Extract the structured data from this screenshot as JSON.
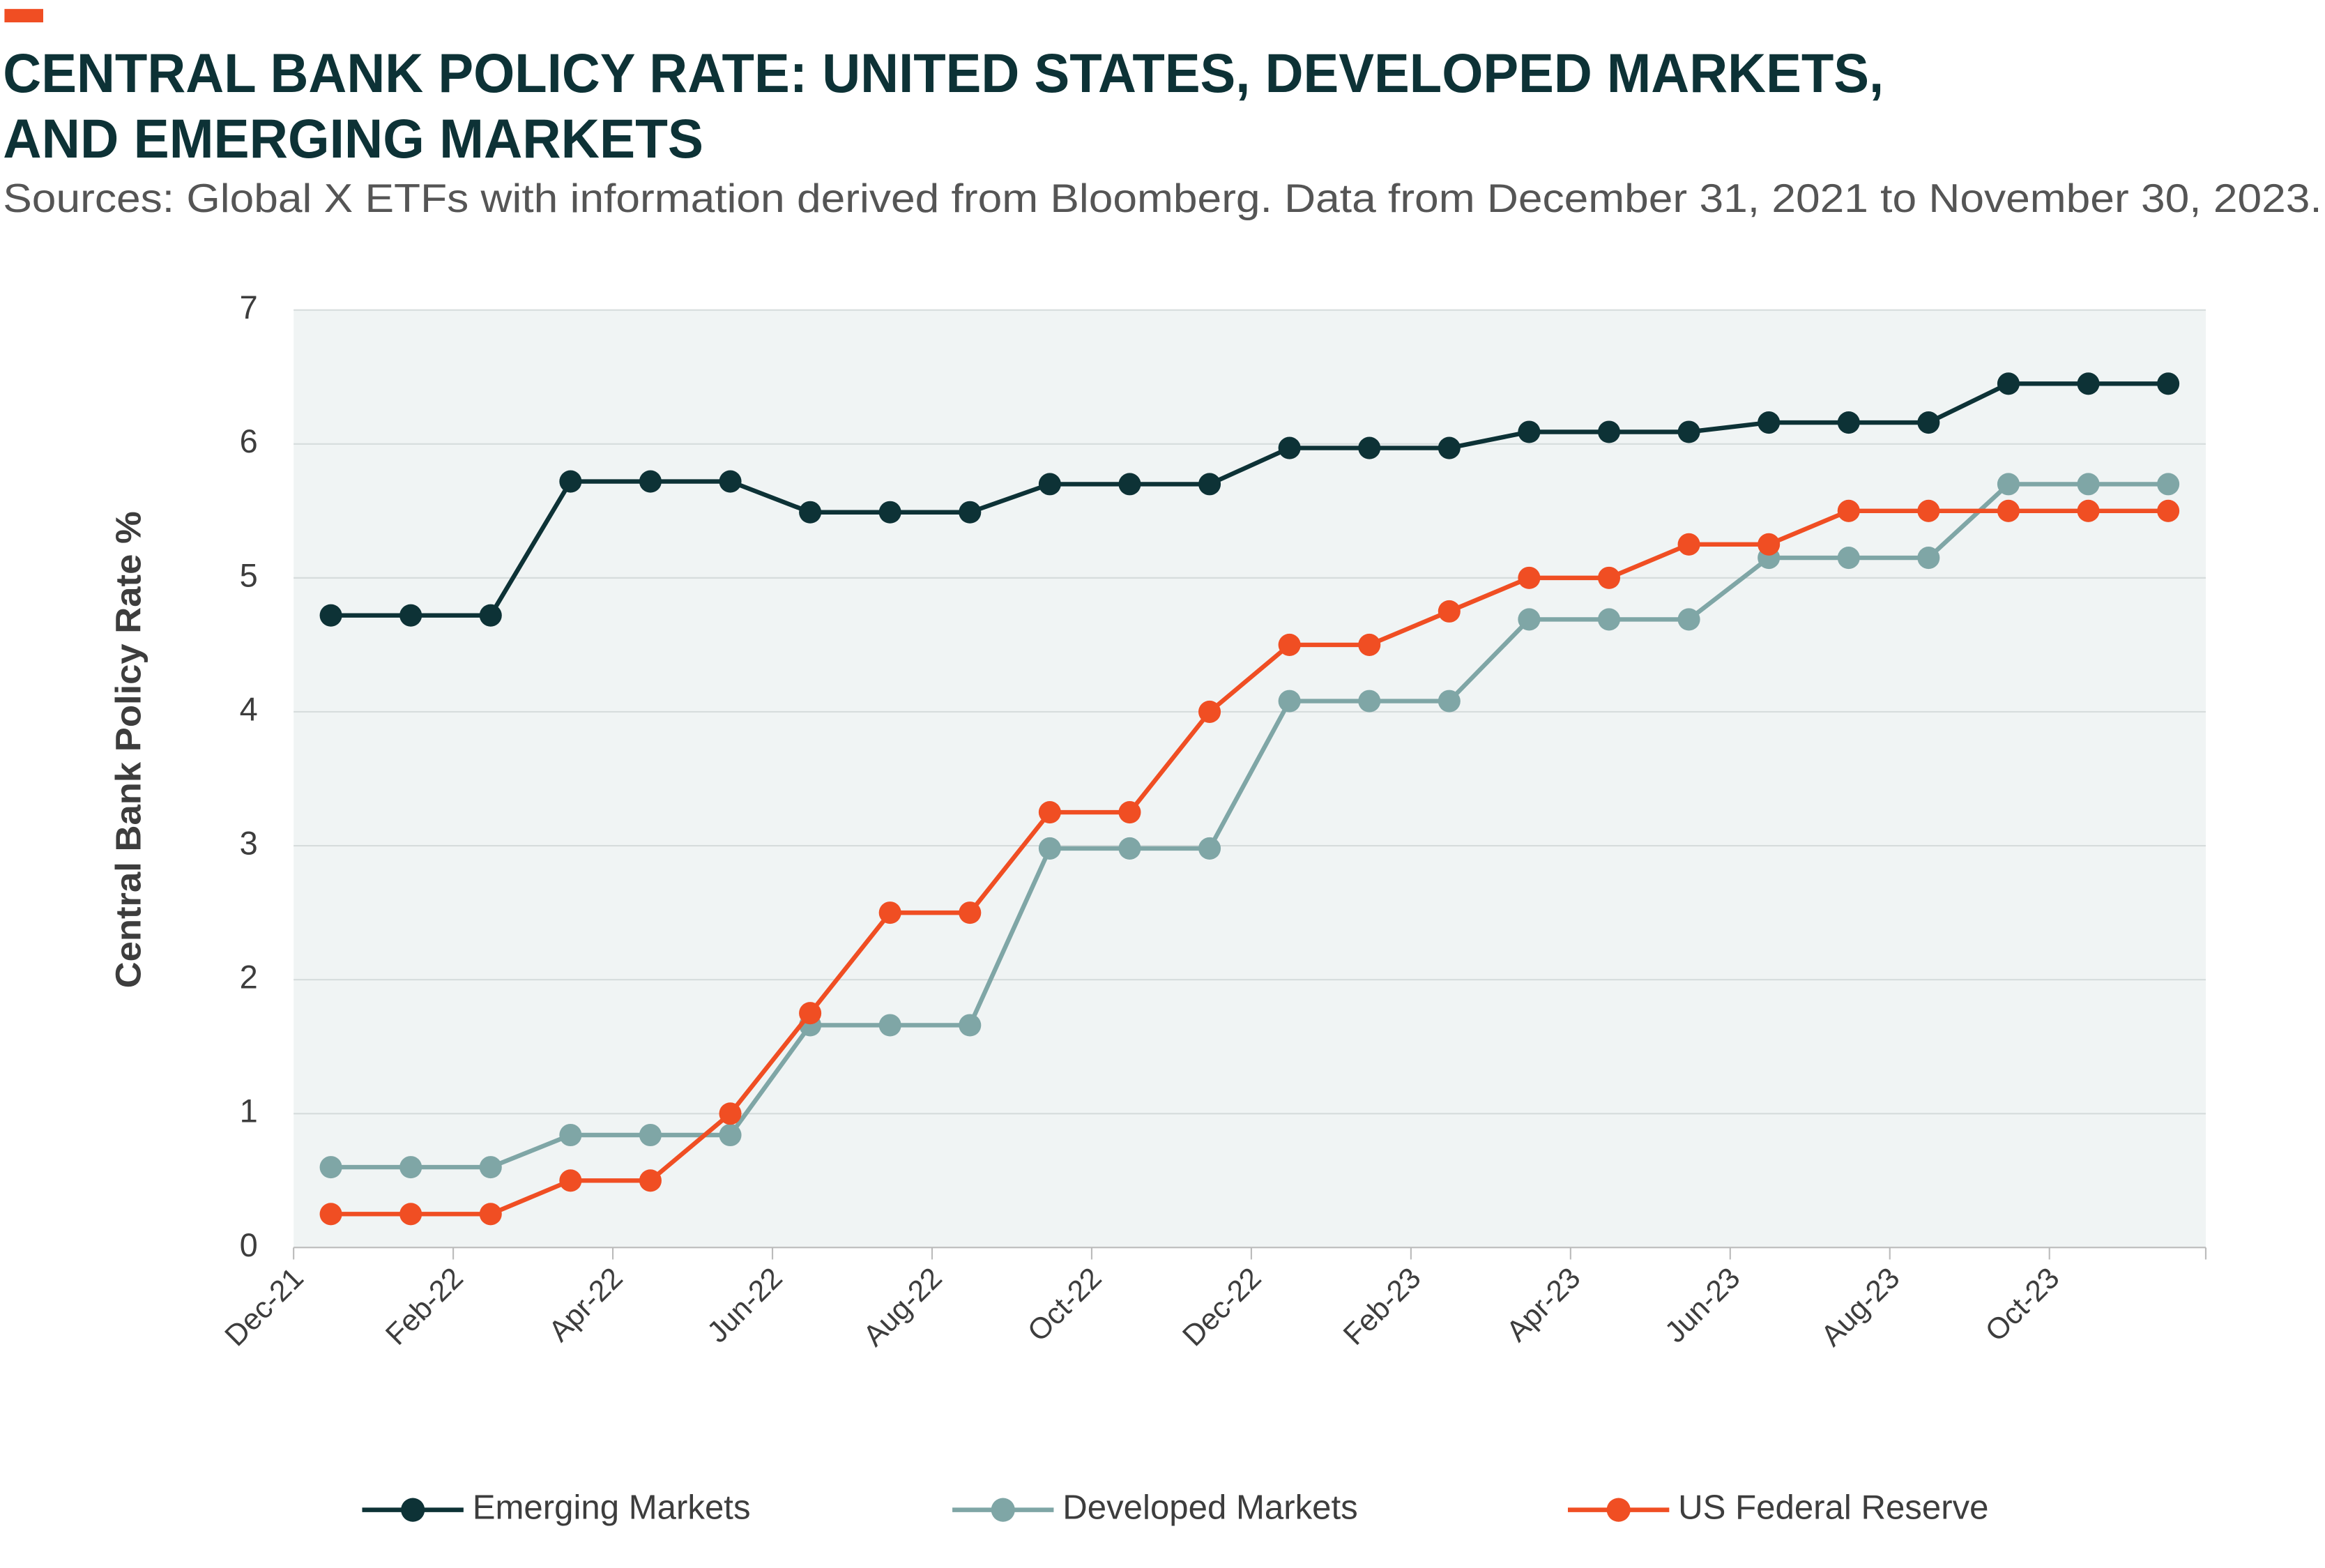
{
  "chart_data": {
    "type": "line",
    "title": [
      "CENTRAL BANK POLICY RATE: UNITED STATES, DEVELOPED MARKETS,",
      "AND EMERGING MARKETS"
    ],
    "subtitle": "Sources: Global X ETFs with information derived from Bloomberg. Data from December 31, 2021 to November 30, 2023.",
    "y_label": "Central Bank Policy Rate %",
    "categories": [
      null,
      null,
      null,
      null,
      null,
      null,
      null,
      null,
      null,
      null,
      null,
      null,
      null,
      null,
      null,
      null,
      null,
      null,
      null,
      null,
      null,
      null,
      null,
      null
    ],
    "xticks": [
      "Dec-21",
      "Feb-22",
      "Apr-22",
      "Jun-22",
      "Aug-22",
      "Oct-22",
      "Dec-22",
      "Feb-23",
      "Apr-23",
      "Jun-23",
      "Aug-23",
      "Oct-23"
    ],
    "ylim": [
      0,
      7
    ],
    "yticks": [
      0,
      1,
      2,
      3,
      4,
      5,
      6,
      7
    ],
    "grid": true,
    "legend": "bottom",
    "series": [
      {
        "name": "Emerging Markets",
        "color": "#0d3236",
        "values": [
          4.72,
          4.72,
          4.72,
          5.72,
          5.72,
          5.72,
          5.49,
          5.49,
          5.49,
          5.7,
          5.7,
          5.7,
          5.97,
          5.97,
          5.97,
          6.09,
          6.09,
          6.09,
          6.16,
          6.16,
          6.16,
          6.45,
          6.45,
          6.45
        ]
      },
      {
        "name": "Developed Markets",
        "color": "#7fa6a6",
        "values": [
          0.6,
          0.6,
          0.6,
          0.84,
          0.84,
          0.84,
          1.66,
          1.66,
          1.66,
          2.98,
          2.98,
          2.98,
          4.08,
          4.08,
          4.08,
          4.69,
          4.69,
          4.69,
          5.15,
          5.15,
          5.15,
          5.7,
          5.7,
          5.7
        ]
      },
      {
        "name": "US Federal Reserve",
        "color": "#f04e23",
        "values": [
          0.25,
          0.25,
          0.25,
          0.5,
          0.5,
          1.0,
          1.75,
          2.5,
          2.5,
          3.25,
          3.25,
          4.0,
          4.5,
          4.5,
          4.75,
          5.0,
          5.0,
          5.25,
          5.25,
          5.5,
          5.5,
          5.5,
          5.5,
          5.5
        ]
      }
    ]
  }
}
